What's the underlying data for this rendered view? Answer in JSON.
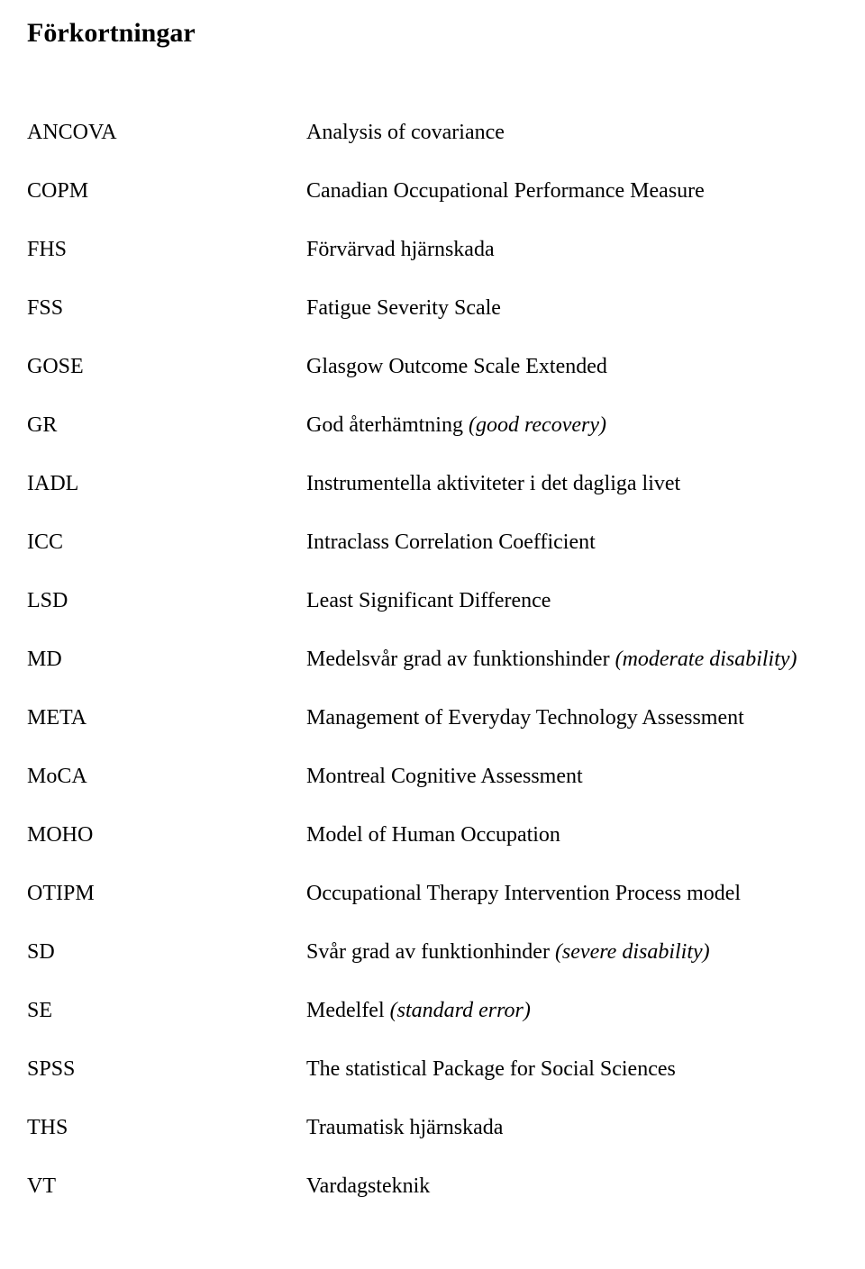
{
  "title": "Förkortningar",
  "text_color": "#000000",
  "background_color": "#ffffff",
  "font_family": "Times New Roman",
  "title_fontsize": 30,
  "body_fontsize": 24,
  "entries": [
    {
      "abbr": "ANCOVA",
      "def": "Analysis of covariance",
      "italic_part": ""
    },
    {
      "abbr": "COPM",
      "def": "Canadian Occupational Performance Measure",
      "italic_part": ""
    },
    {
      "abbr": "FHS",
      "def": "Förvärvad hjärnskada",
      "italic_part": ""
    },
    {
      "abbr": "FSS",
      "def": "Fatigue Severity Scale",
      "italic_part": ""
    },
    {
      "abbr": "GOSE",
      "def": "Glasgow Outcome Scale Extended",
      "italic_part": ""
    },
    {
      "abbr": "GR",
      "def": "God återhämtning ",
      "italic_part": "(good recovery)"
    },
    {
      "abbr": "IADL",
      "def": "Instrumentella aktiviteter i det dagliga livet",
      "italic_part": ""
    },
    {
      "abbr": "ICC",
      "def": "Intraclass Correlation Coefficient",
      "italic_part": ""
    },
    {
      "abbr": "LSD",
      "def": "Least Significant Difference",
      "italic_part": ""
    },
    {
      "abbr": "MD",
      "def": "Medelsvår grad av funktionshinder ",
      "italic_part": "(moderate disability)"
    },
    {
      "abbr": "META",
      "def": "Management of Everyday Technology Assessment",
      "italic_part": ""
    },
    {
      "abbr": "MoCA",
      "def": "Montreal Cognitive Assessment",
      "italic_part": ""
    },
    {
      "abbr": "MOHO",
      "def": "Model of Human Occupation",
      "italic_part": ""
    },
    {
      "abbr": "OTIPM",
      "def": "Occupational Therapy Intervention Process model",
      "italic_part": ""
    },
    {
      "abbr": "SD",
      "def": "Svår grad av funktionhinder ",
      "italic_part": "(severe disability)"
    },
    {
      "abbr": "SE",
      "def": "Medelfel ",
      "italic_part": "(standard error)"
    },
    {
      "abbr": "SPSS",
      "def": "The statistical Package for Social Sciences",
      "italic_part": ""
    },
    {
      "abbr": "THS",
      "def": "Traumatisk hjärnskada",
      "italic_part": ""
    },
    {
      "abbr": "VT",
      "def": "Vardagsteknik",
      "italic_part": ""
    }
  ]
}
